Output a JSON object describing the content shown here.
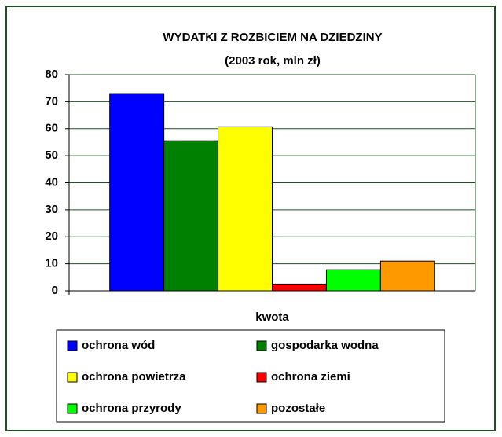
{
  "chart_data": {
    "type": "bar",
    "title": "WYDATKI Z ROZBICIEM NA DZIEDZINY",
    "subtitle": "(2003 rok, mln zł)",
    "categories": [
      "kwota"
    ],
    "series": [
      {
        "name": "ochrona wód",
        "color": "#0000ff",
        "values": [
          73
        ]
      },
      {
        "name": "gospodarka wodna",
        "color": "#008000",
        "values": [
          55.5
        ]
      },
      {
        "name": "ochrona powietrza",
        "color": "#ffff00",
        "values": [
          60.7
        ]
      },
      {
        "name": "ochrona ziemi",
        "color": "#ff0000",
        "values": [
          2.5
        ]
      },
      {
        "name": "ochrona przyrody",
        "color": "#00ff00",
        "values": [
          7.8
        ]
      },
      {
        "name": "pozostałe",
        "color": "#ff9900",
        "values": [
          11
        ]
      }
    ],
    "ylim": [
      0,
      80
    ],
    "yticks": [
      0,
      10,
      20,
      30,
      40,
      50,
      60,
      70,
      80
    ],
    "grid": true,
    "legend": "bottom"
  }
}
